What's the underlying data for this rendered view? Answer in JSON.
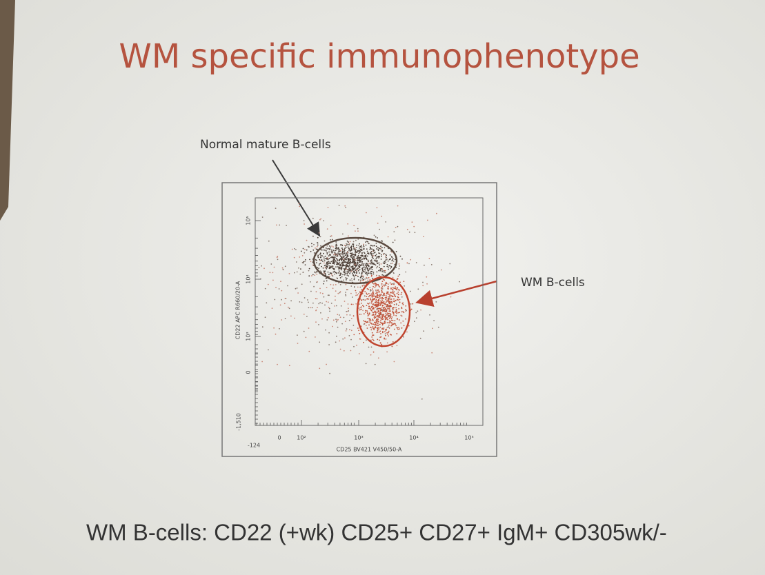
{
  "title": "WM specific immunophenotype",
  "annotations": {
    "normal": "Normal mature B-cells",
    "wm": "WM B-cells"
  },
  "plot": {
    "y_axis_label": "CD22 APC R660/20-A",
    "x_axis_label": "CD25 BV421 V450/50-A",
    "y_tick_labels": [
      "10⁵",
      "10⁴",
      "10³",
      "0",
      "-1,510"
    ],
    "x_tick_labels": [
      "-124",
      "0",
      "10²",
      "10³",
      "10⁴",
      "10⁵"
    ]
  },
  "footer": "WM B-cells: CD22 (+wk) CD25+ CD27+ IgM+ CD305wk/-"
}
